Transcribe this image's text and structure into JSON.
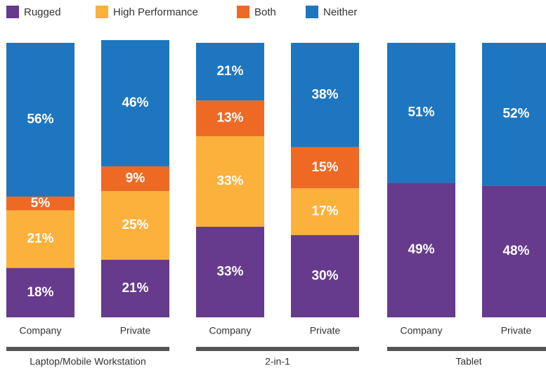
{
  "chart_data": {
    "type": "bar",
    "stacked": true,
    "groups": [
      {
        "name": "Laptop/Mobile Workstation",
        "categories": [
          "Company",
          "Private"
        ]
      },
      {
        "name": "2-in-1",
        "categories": [
          "Company",
          "Private"
        ]
      },
      {
        "name": "Tablet",
        "categories": [
          "Company",
          "Private"
        ]
      }
    ],
    "ylim": [
      0,
      100
    ],
    "series": [
      {
        "name": "Rugged",
        "color": "#663a8c",
        "values": [
          18,
          21,
          33,
          30,
          49,
          48
        ],
        "value_labels": [
          "18%",
          "21%",
          "33%",
          "30%",
          "49%",
          "48%"
        ]
      },
      {
        "name": "High Performance",
        "color": "#fbb13c",
        "values": [
          21,
          25,
          33,
          17,
          null,
          null
        ],
        "value_labels": [
          "21%",
          "25%",
          "33%",
          "17%",
          null,
          null
        ]
      },
      {
        "name": "Both",
        "color": "#ee6a24",
        "values": [
          5,
          9,
          13,
          15,
          null,
          null
        ],
        "value_labels": [
          "5%",
          "9%",
          "13%",
          "15%",
          null,
          null
        ]
      },
      {
        "name": "Neither",
        "color": "#1f76c0",
        "values": [
          56,
          46,
          21,
          38,
          51,
          52
        ],
        "value_labels": [
          "56%",
          "46%",
          "21%",
          "38%",
          "51%",
          "52%"
        ]
      }
    ]
  }
}
